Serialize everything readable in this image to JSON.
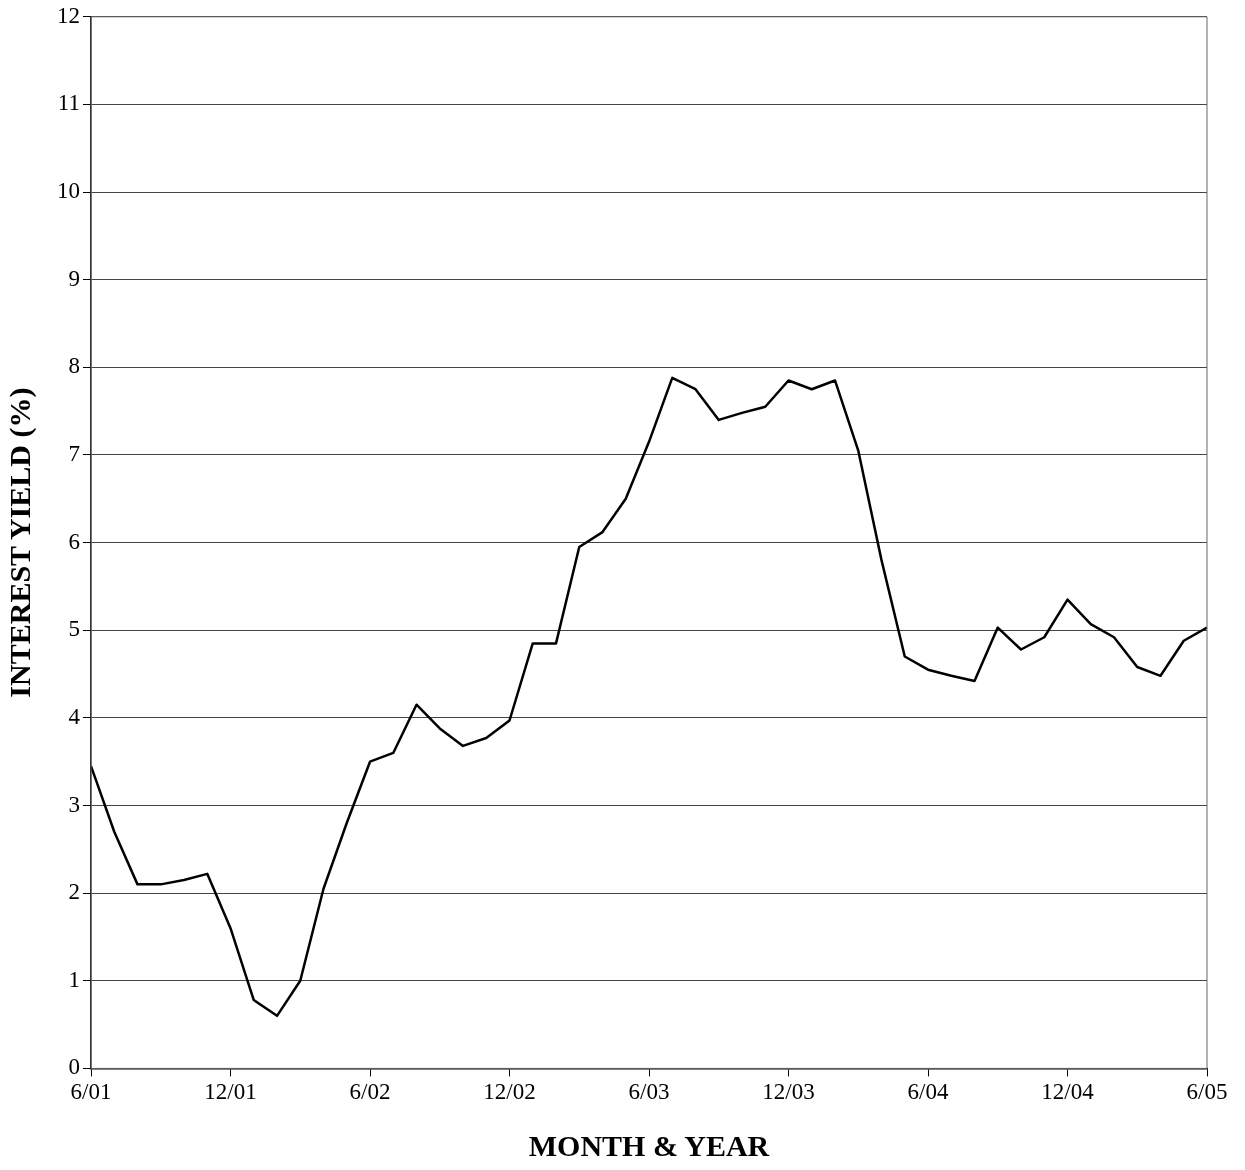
{
  "chart_data": {
    "type": "line",
    "xlabel": "MONTH & YEAR",
    "ylabel": "INTEREST YIELD (%)",
    "x": [
      "2001-06",
      "2001-07",
      "2001-08",
      "2001-09",
      "2001-10",
      "2001-11",
      "2001-12",
      "2002-01",
      "2002-02",
      "2002-03",
      "2002-04",
      "2002-05",
      "2002-06",
      "2002-07",
      "2002-08",
      "2002-09",
      "2002-10",
      "2002-11",
      "2002-12",
      "2003-01",
      "2003-02",
      "2003-03",
      "2003-04",
      "2003-05",
      "2003-06",
      "2003-07",
      "2003-08",
      "2003-09",
      "2003-10",
      "2003-11",
      "2003-12",
      "2004-01",
      "2004-02",
      "2004-03",
      "2004-04",
      "2004-05",
      "2004-06",
      "2004-07",
      "2004-08",
      "2004-09",
      "2004-10",
      "2004-11",
      "2004-12",
      "2005-01",
      "2005-02",
      "2005-03",
      "2005-04",
      "2005-05",
      "2005-06"
    ],
    "series": [
      {
        "color": "#000000",
        "values": [
          3.45,
          2.7,
          2.1,
          2.1,
          2.15,
          2.22,
          1.6,
          0.78,
          0.6,
          1.0,
          2.05,
          2.8,
          3.5,
          3.6,
          4.15,
          3.88,
          3.68,
          3.77,
          3.97,
          4.85,
          4.85,
          5.95,
          6.12,
          6.5,
          7.15,
          7.88,
          7.75,
          7.4,
          7.48,
          7.55,
          7.85,
          7.75,
          7.85,
          7.05,
          5.8,
          4.7,
          4.55,
          4.48,
          4.42,
          5.03,
          4.78,
          4.92,
          5.35,
          5.07,
          4.92,
          4.58,
          4.48,
          4.88,
          5.03
        ]
      }
    ],
    "xlim": [
      "2001-06",
      "2005-06"
    ],
    "xticks": [
      {
        "value": "2001-06",
        "label": "6/01"
      },
      {
        "value": "2001-12",
        "label": "12/01"
      },
      {
        "value": "2002-06",
        "label": "6/02"
      },
      {
        "value": "2002-12",
        "label": "12/02"
      },
      {
        "value": "2003-06",
        "label": "6/03"
      },
      {
        "value": "2003-12",
        "label": "12/03"
      },
      {
        "value": "2004-06",
        "label": "6/04"
      },
      {
        "value": "2004-12",
        "label": "12/04"
      },
      {
        "value": "2005-06",
        "label": "6/05"
      }
    ],
    "ylim": [
      0,
      12
    ],
    "yticks": [
      0,
      1,
      2,
      3,
      4,
      5,
      6,
      7,
      8,
      9,
      10,
      11,
      12
    ],
    "grid": "y",
    "legend": false,
    "marker": "none",
    "line_style": "solid"
  }
}
